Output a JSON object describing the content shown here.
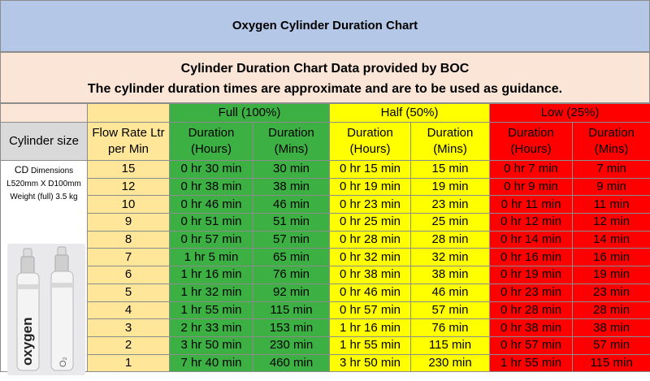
{
  "header": {
    "title": "Oxygen Cylinder Duration Chart",
    "source_line": "Cylinder Duration Chart Data provided by BOC",
    "guidance_line": "The cylinder duration times are approximate and are to be used as guidance."
  },
  "groups": {
    "full": "Full (100%)",
    "half": "Half (50%)",
    "low": "Low (25%)"
  },
  "columns": {
    "cylinder_size": "Cylinder size",
    "flow_rate_1": "Flow Rate Ltr",
    "flow_rate_2": "per Min",
    "duration": "Duration",
    "hours": "(Hours)",
    "mins": "(Mins)"
  },
  "cylinder": {
    "code": "CD",
    "dimensions": "Dimensions L520mm X D100mm Weight (full) 3.5 kg",
    "label": "oxygen",
    "small_label": "O₂"
  },
  "colors": {
    "title_bg": "#b4c7e7",
    "info_bg": "#fbe5d6",
    "flow_bg": "#ffe699",
    "full": "#3cb043",
    "half": "#ffff00",
    "low": "#ff0000"
  },
  "rows": [
    {
      "flow": "15",
      "full_h": "0 hr 30 min",
      "full_m": "30 min",
      "half_h": "0 hr 15 min",
      "half_m": "15 min",
      "low_h": "0 hr 7 min",
      "low_m": "7 min"
    },
    {
      "flow": "12",
      "full_h": "0 hr 38 min",
      "full_m": "38 min",
      "half_h": "0 hr 19 min",
      "half_m": "19 min",
      "low_h": "0 hr 9 min",
      "low_m": "9 min"
    },
    {
      "flow": "10",
      "full_h": "0 hr 46 min",
      "full_m": "46 min",
      "half_h": "0 hr 23 min",
      "half_m": "23 min",
      "low_h": "0 hr 11 min",
      "low_m": "11 min"
    },
    {
      "flow": "9",
      "full_h": "0 hr 51 min",
      "full_m": "51 min",
      "half_h": "0 hr 25 min",
      "half_m": "25 min",
      "low_h": "0 hr 12 min",
      "low_m": "12 min"
    },
    {
      "flow": "8",
      "full_h": "0 hr 57 min",
      "full_m": "57 min",
      "half_h": "0 hr 28 min",
      "half_m": "28 min",
      "low_h": "0 hr 14 min",
      "low_m": "14 min"
    },
    {
      "flow": "7",
      "full_h": "1 hr 5 min",
      "full_m": "65 min",
      "half_h": "0 hr 32 min",
      "half_m": "32 min",
      "low_h": "0 hr 16 min",
      "low_m": "16 min"
    },
    {
      "flow": "6",
      "full_h": "1 hr 16 min",
      "full_m": "76 min",
      "half_h": "0 hr 38 min",
      "half_m": "38 min",
      "low_h": "0 hr 19 min",
      "low_m": "19 min"
    },
    {
      "flow": "5",
      "full_h": "1 hr 32 min",
      "full_m": "92 min",
      "half_h": "0 hr 46 min",
      "half_m": "46 min",
      "low_h": "0 hr 23 min",
      "low_m": "23 min"
    },
    {
      "flow": "4",
      "full_h": "1 hr 55 min",
      "full_m": "115 min",
      "half_h": "0 hr 57 min",
      "half_m": "57 min",
      "low_h": "0 hr 28 min",
      "low_m": "28 min"
    },
    {
      "flow": "3",
      "full_h": "2 hr 33 min",
      "full_m": "153 min",
      "half_h": "1 hr 16 min",
      "half_m": "76 min",
      "low_h": "0 hr 38 min",
      "low_m": "38 min"
    },
    {
      "flow": "2",
      "full_h": "3 hr 50 min",
      "full_m": "230 min",
      "half_h": "1 hr 55 min",
      "half_m": "115 min",
      "low_h": "0 hr 57 min",
      "low_m": "57 min"
    },
    {
      "flow": "1",
      "full_h": "7 hr 40 min",
      "full_m": "460 min",
      "half_h": "3 hr 50 min",
      "half_m": "230 min",
      "low_h": "1 hr 55 min",
      "low_m": "115 min"
    }
  ]
}
